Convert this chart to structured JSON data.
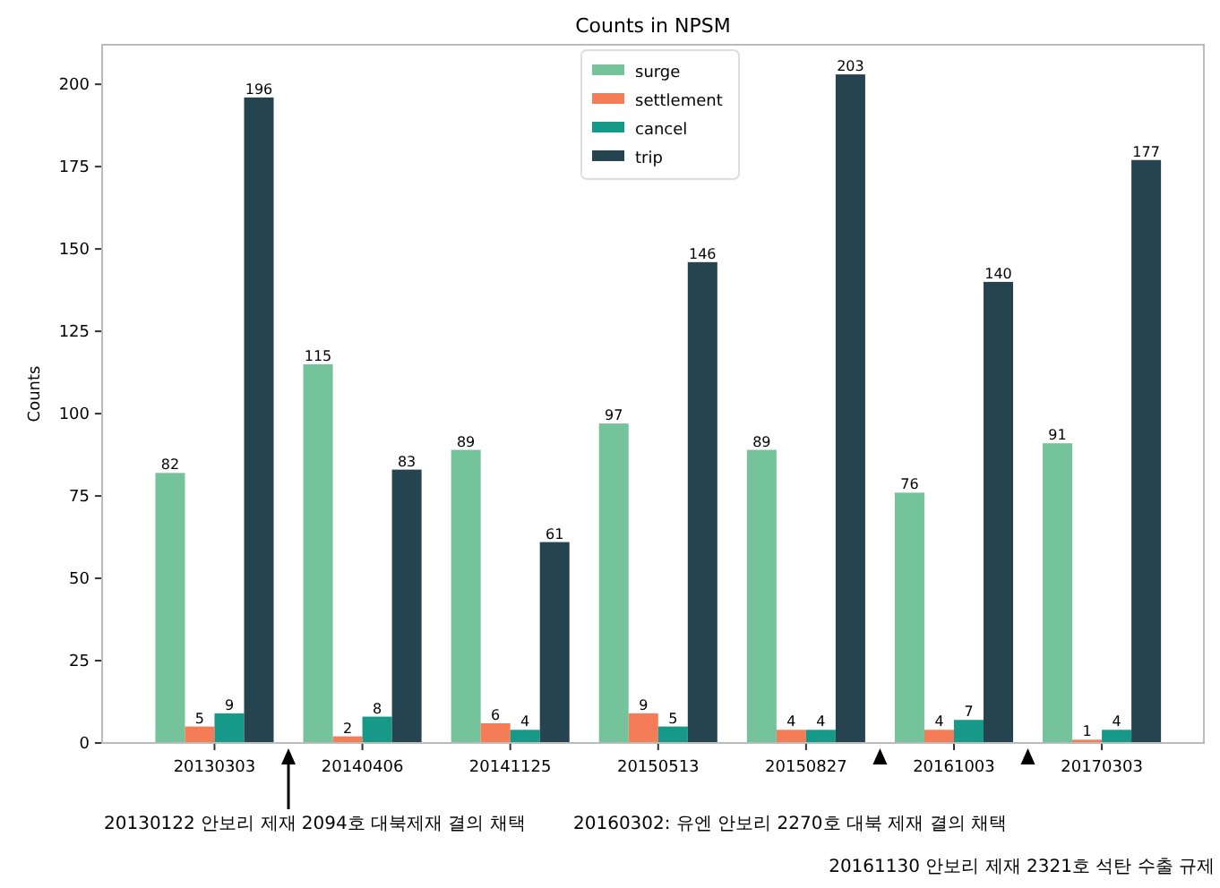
{
  "chart_data": {
    "type": "bar",
    "title": "Counts in NPSM",
    "ylabel": "Counts",
    "categories": [
      "20130303",
      "20140406",
      "20141125",
      "20150513",
      "20150827",
      "20161003",
      "20170303"
    ],
    "series": [
      {
        "name": "surge",
        "color": "#74c39a",
        "values": [
          82,
          115,
          89,
          97,
          89,
          76,
          91
        ]
      },
      {
        "name": "settlement",
        "color": "#f47d57",
        "values": [
          5,
          2,
          6,
          9,
          4,
          4,
          1
        ]
      },
      {
        "name": "cancel",
        "color": "#17998a",
        "values": [
          9,
          8,
          4,
          5,
          4,
          7,
          4
        ]
      },
      {
        "name": "trip",
        "color": "#264350",
        "values": [
          196,
          83,
          61,
          146,
          203,
          140,
          177
        ]
      }
    ],
    "ylim": [
      0,
      212
    ],
    "yticks": [
      0,
      25,
      50,
      75,
      100,
      125,
      150,
      175,
      200
    ],
    "data_labels": true,
    "legend": "top",
    "grid": false,
    "annotations": [
      "20130122 안보리 제재 2094호 대북제재 결의 채택",
      "20160302: 유엔 안보리 2270호 대북 제재 결의 채택",
      "20161130 안보리 제재 2321호 석탄 수출 규제"
    ]
  }
}
